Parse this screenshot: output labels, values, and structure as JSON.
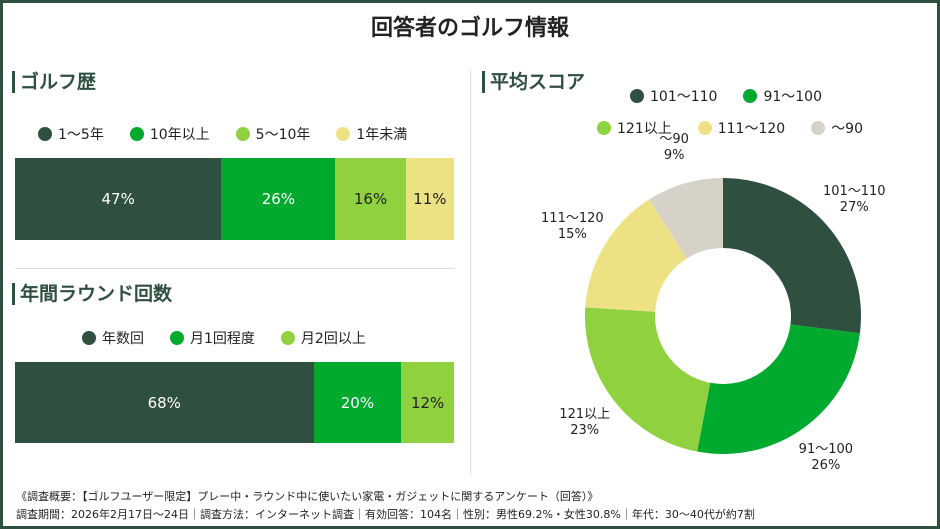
{
  "title": "回答者のゴルフ情報",
  "colors": {
    "dark": "#2f4f3f",
    "green": "#00aa2e",
    "light": "#8fd13f",
    "yellow": "#ede283",
    "gray": "#d6d2c8"
  },
  "chart_data": [
    {
      "type": "bar",
      "stacked": true,
      "orientation": "horizontal",
      "title": "ゴルフ歴",
      "series": [
        {
          "name": "1〜5年",
          "value": 47,
          "label": "47%",
          "color": "#2f4f3f"
        },
        {
          "name": "10年以上",
          "value": 26,
          "label": "26%",
          "color": "#00aa2e"
        },
        {
          "name": "5〜10年",
          "value": 16,
          "label": "16%",
          "color": "#8fd13f"
        },
        {
          "name": "1年未満",
          "value": 11,
          "label": "11%",
          "color": "#ede283"
        }
      ],
      "legend": "top"
    },
    {
      "type": "bar",
      "stacked": true,
      "orientation": "horizontal",
      "title": "年間ラウンド回数",
      "series": [
        {
          "name": "年数回",
          "value": 68,
          "label": "68%",
          "color": "#2f4f3f"
        },
        {
          "name": "月1回程度",
          "value": 20,
          "label": "20%",
          "color": "#00aa2e"
        },
        {
          "name": "月2回以上",
          "value": 12,
          "label": "12%",
          "color": "#8fd13f"
        }
      ],
      "legend": "top"
    },
    {
      "type": "pie",
      "donut": true,
      "title": "平均スコア",
      "slices": [
        {
          "name": "101〜110",
          "value": 27,
          "label": "27%",
          "color": "#2f4f3f"
        },
        {
          "name": "91〜100",
          "value": 26,
          "label": "26%",
          "color": "#00aa2e"
        },
        {
          "name": "121以上",
          "value": 23,
          "label": "23%",
          "color": "#8fd13f"
        },
        {
          "name": "111〜120",
          "value": 15,
          "label": "15%",
          "color": "#ede283"
        },
        {
          "name": "〜90",
          "value": 9,
          "label": "9%",
          "color": "#d6d2c8"
        }
      ],
      "legend_order": [
        "101〜110",
        "91〜100",
        "121以上",
        "111〜120",
        "〜90"
      ],
      "legend": "top"
    }
  ],
  "footer": {
    "line1": "《調査概要：【ゴルフユーザー限定】プレー中・ラウンド中に使いたい家電・ガジェットに関するアンケート（回答）》",
    "line2": "調査期間：2026年2月17日〜24日｜調査方法：インターネット調査｜有効回答：104名｜性別：男性69.2%・女性30.8%｜年代：30〜40代が約7割"
  }
}
